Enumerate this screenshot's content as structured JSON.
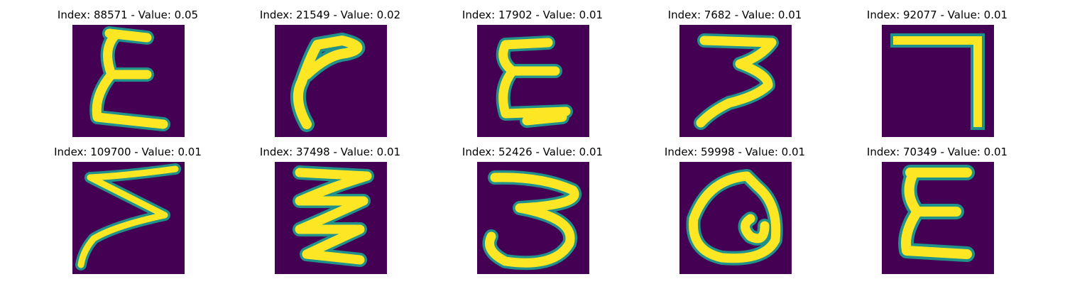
{
  "panels": [
    {
      "title": "Index: 88571 - Value: 0.05",
      "glyph": "E"
    },
    {
      "title": "Index: 21549 - Value: 0.02",
      "glyph": "r"
    },
    {
      "title": "Index: 17902 - Value: 0.01",
      "glyph": "E"
    },
    {
      "title": "Index: 7682 - Value: 0.01",
      "glyph": "3"
    },
    {
      "title": "Index: 92077 - Value: 0.01",
      "glyph": "7"
    },
    {
      "title": "Index: 109700 - Value: 0.01",
      "glyph": "Z"
    },
    {
      "title": "Index: 37498 - Value: 0.01",
      "glyph": "E"
    },
    {
      "title": "Index: 52426 - Value: 0.01",
      "glyph": "3"
    },
    {
      "title": "Index: 59998 - Value: 0.01",
      "glyph": "Q"
    },
    {
      "title": "Index: 70349 - Value: 0.01",
      "glyph": "E"
    }
  ],
  "colors": {
    "background": "#440154",
    "stroke_core": "#fde725",
    "stroke_edge": "#21918c"
  }
}
